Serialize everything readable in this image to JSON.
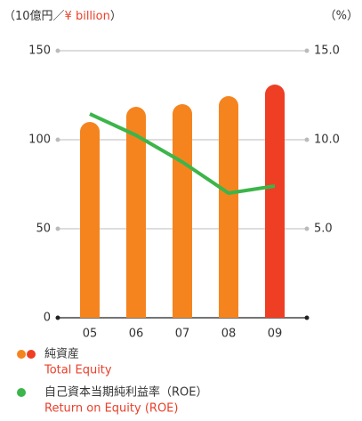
{
  "chart_data": {
    "type": "bar_line",
    "y_unit_prefix": "（10億円／",
    "y_unit_highlight": "¥ billion",
    "y_unit_suffix": "）",
    "y2_unit": "（%）",
    "categories": [
      "05",
      "06",
      "07",
      "08",
      "09"
    ],
    "series": [
      {
        "name": "純資産",
        "name_en": "Total Equity",
        "type": "bar",
        "colors": [
          "#f5841f",
          "#f5841f",
          "#f5841f",
          "#f5841f",
          "#ee3e24"
        ],
        "values": [
          110,
          118.5,
          120,
          124.5,
          131
        ]
      },
      {
        "name": "自己資本当期純利益率（ROE）",
        "name_en": "Return on Equity (ROE)",
        "type": "line",
        "axis": "y2",
        "color": "#3cb54a",
        "values": [
          11.45,
          10.25,
          8.75,
          7.0,
          7.4
        ]
      }
    ],
    "ylim": [
      0,
      150
    ],
    "yticks": [
      0,
      50,
      100,
      150
    ],
    "y2lim": [
      0,
      15
    ],
    "y2ticks": [
      {
        "value": 5,
        "label": "5.0"
      },
      {
        "value": 10,
        "label": "10.0"
      },
      {
        "value": 15,
        "label": "15.0"
      }
    ],
    "grid": true
  }
}
